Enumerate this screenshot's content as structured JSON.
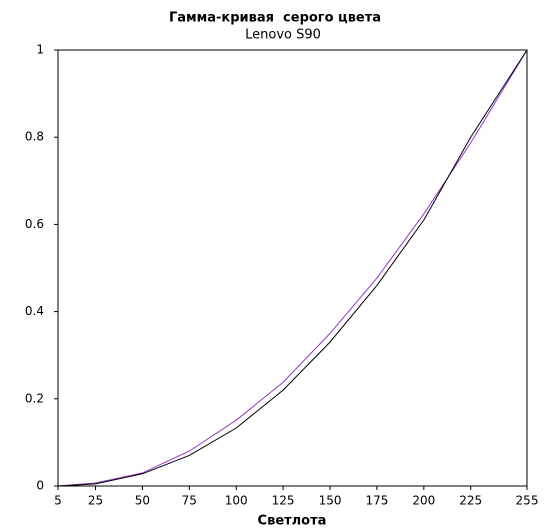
{
  "chart_data": {
    "type": "line",
    "title": "Гамма-кривая  серого цвета",
    "subtitle": "Lenovo S90",
    "x_label": "Светлота",
    "x": [
      5,
      25,
      50,
      75,
      100,
      125,
      150,
      175,
      200,
      225,
      255
    ],
    "series": [
      {
        "color": "#9933cc",
        "values": [
          0,
          0.007,
          0.03,
          0.08,
          0.151,
          0.238,
          0.35,
          0.477,
          0.624,
          0.787,
          1
        ]
      },
      {
        "color": "#000000",
        "values": [
          0,
          0.005,
          0.028,
          0.07,
          0.133,
          0.22,
          0.33,
          0.46,
          0.61,
          0.8,
          1
        ]
      }
    ],
    "xlim": [
      5,
      255
    ],
    "xticks": [
      5,
      25,
      50,
      75,
      100,
      125,
      150,
      175,
      200,
      225,
      255
    ],
    "ylim": [
      0,
      1
    ],
    "yticks": [
      0,
      0.2,
      0.4,
      0.6,
      0.8,
      1
    ],
    "grid": false
  }
}
